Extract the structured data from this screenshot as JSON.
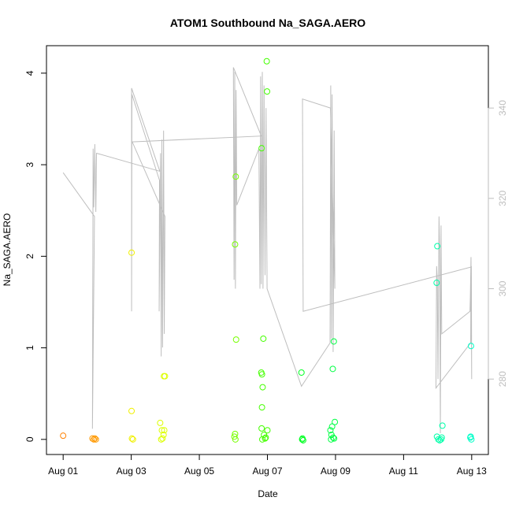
{
  "chart_data": {
    "type": "scatter",
    "title": "ATOM1 Southbound Na_SAGA.AERO",
    "x_label": "Date",
    "y_label": "Na_SAGA.AERO",
    "xlim": [
      -0.49,
      12.49
    ],
    "xticks": [
      {
        "value": 0,
        "label": "Aug 01"
      },
      {
        "value": 2,
        "label": "Aug 03"
      },
      {
        "value": 4,
        "label": "Aug 05"
      },
      {
        "value": 6,
        "label": "Aug 07"
      },
      {
        "value": 8,
        "label": "Aug 09"
      },
      {
        "value": 10,
        "label": "Aug 11"
      },
      {
        "value": 12,
        "label": "Aug 13"
      }
    ],
    "ylim": [
      -0.165,
      4.3
    ],
    "yticks": [
      0,
      1,
      2,
      3,
      4
    ],
    "y2lim": [
      263.3,
      353.8
    ],
    "y2ticks": [
      280,
      300,
      320,
      340
    ],
    "y2_color": "#bebebe",
    "series": [
      {
        "type": "scatter",
        "x": [
          0.0,
          0.86,
          0.9,
          0.93,
          0.96,
          2.01,
          2.01,
          2.02,
          2.05,
          2.85,
          2.9,
          2.96,
          2.99,
          2.88,
          2.92,
          2.95,
          2.97,
          5.05,
          5.07,
          5.08,
          5.05,
          5.03,
          5.06,
          5.83,
          5.82,
          5.84,
          5.86,
          5.84,
          5.88,
          5.98,
          5.99,
          5.83,
          5.9,
          5.95,
          5.85,
          6.0,
          5.93,
          7.0,
          7.02,
          7.05,
          7.03,
          7.92,
          7.95,
          7.98,
          7.9,
          7.85,
          7.88,
          7.93,
          7.87,
          7.96,
          10.99,
          10.97,
          11.14,
          10.98,
          11.02,
          11.06,
          11.1,
          11.12,
          11.98,
          11.96,
          11.97,
          11.99
        ],
        "values": [
          0.04,
          0.01,
          0.0,
          0.01,
          0.0,
          2.04,
          0.31,
          0.01,
          0.0,
          0.18,
          0.1,
          0.69,
          0.69,
          0.0,
          0.01,
          0.05,
          0.1,
          2.13,
          2.87,
          1.09,
          0.06,
          0.03,
          0.0,
          3.18,
          0.73,
          0.71,
          0.57,
          0.35,
          1.1,
          4.13,
          3.8,
          0.12,
          0.05,
          0.02,
          0.0,
          0.1,
          0.01,
          0.73,
          0.0,
          -0.01,
          0.01,
          0.77,
          1.07,
          0.19,
          0.14,
          0.1,
          0.05,
          0.02,
          0.0,
          0.01,
          2.11,
          1.71,
          0.15,
          0.03,
          0.0,
          -0.01,
          0.0,
          0.02,
          1.02,
          0.02,
          0.03,
          0.0
        ],
        "colors": [
          "#ff8000",
          "#ff9900",
          "#ff9900",
          "#ff9900",
          "#ff9900",
          "#f0f000",
          "#f0f000",
          "#f0f000",
          "#f0f000",
          "#ddff00",
          "#ddff00",
          "#ddff00",
          "#ddff00",
          "#ddff00",
          "#ddff00",
          "#ddff00",
          "#ddff00",
          "#77ff00",
          "#77ff00",
          "#77ff00",
          "#77ff00",
          "#77ff00",
          "#77ff00",
          "#44ff00",
          "#44ff00",
          "#44ff00",
          "#44ff00",
          "#44ff00",
          "#44ff00",
          "#44ff00",
          "#44ff00",
          "#44ff00",
          "#44ff00",
          "#44ff00",
          "#44ff00",
          "#44ff00",
          "#44ff00",
          "#00ff22",
          "#00ff22",
          "#00ff22",
          "#00ff22",
          "#00ff44",
          "#00ff44",
          "#00ff44",
          "#00ff44",
          "#00ff44",
          "#00ff44",
          "#00ff44",
          "#00ff44",
          "#00ff44",
          "#00ffaa",
          "#00ffaa",
          "#00ffaa",
          "#00ffaa",
          "#00ffaa",
          "#00ffaa",
          "#00ffaa",
          "#00ffaa",
          "#00ffc8",
          "#00ffc8",
          "#00ffc8",
          "#00ffc8"
        ]
      },
      {
        "type": "line",
        "axis": "y2",
        "color": "#bebebe",
        "x": [
          0.0,
          0.92,
          0.86,
          0.88,
          0.9,
          0.93,
          0.96,
          0.98,
          2.84,
          2.01,
          2.01,
          2.02,
          2.83,
          2.82,
          2.86,
          2.88,
          2.9,
          2.92,
          2.95,
          2.97,
          2.99,
          2.03,
          5.82,
          5.0,
          5.02,
          5.04,
          5.06,
          5.08,
          5.1,
          5.75,
          5.78,
          5.8,
          5.82,
          5.85,
          5.87,
          5.9,
          5.93,
          5.96,
          5.99,
          7.0,
          7.84,
          7.86,
          7.88,
          7.9,
          7.93,
          7.96,
          7.98,
          7.85,
          7.03,
          7.05,
          11.98,
          11.97,
          10.95,
          10.97,
          10.99,
          11.01,
          11.04,
          11.06,
          11.08,
          11.1,
          11.12,
          11.95,
          11.96,
          11.98,
          12.0,
          11.99
        ],
        "values": [
          325.7,
          316,
          269,
          331,
          318,
          332,
          317,
          330,
          326,
          344.4,
          295,
          343,
          324,
          295,
          330,
          285,
          333,
          287,
          335,
          290,
          316,
          332.5,
          333.8,
          349,
          302,
          348,
          300,
          344,
          318.5,
          331,
          300,
          347,
          301,
          348,
          300,
          345,
          303,
          340,
          300,
          278.4,
          288,
          345,
          289,
          343,
          286,
          335,
          300,
          340,
          342,
          295,
          304.8,
          288,
          278,
          305,
          302,
          280,
          316,
          308,
          268,
          314,
          290,
          295,
          298,
          307,
          280,
          305
        ]
      }
    ]
  }
}
